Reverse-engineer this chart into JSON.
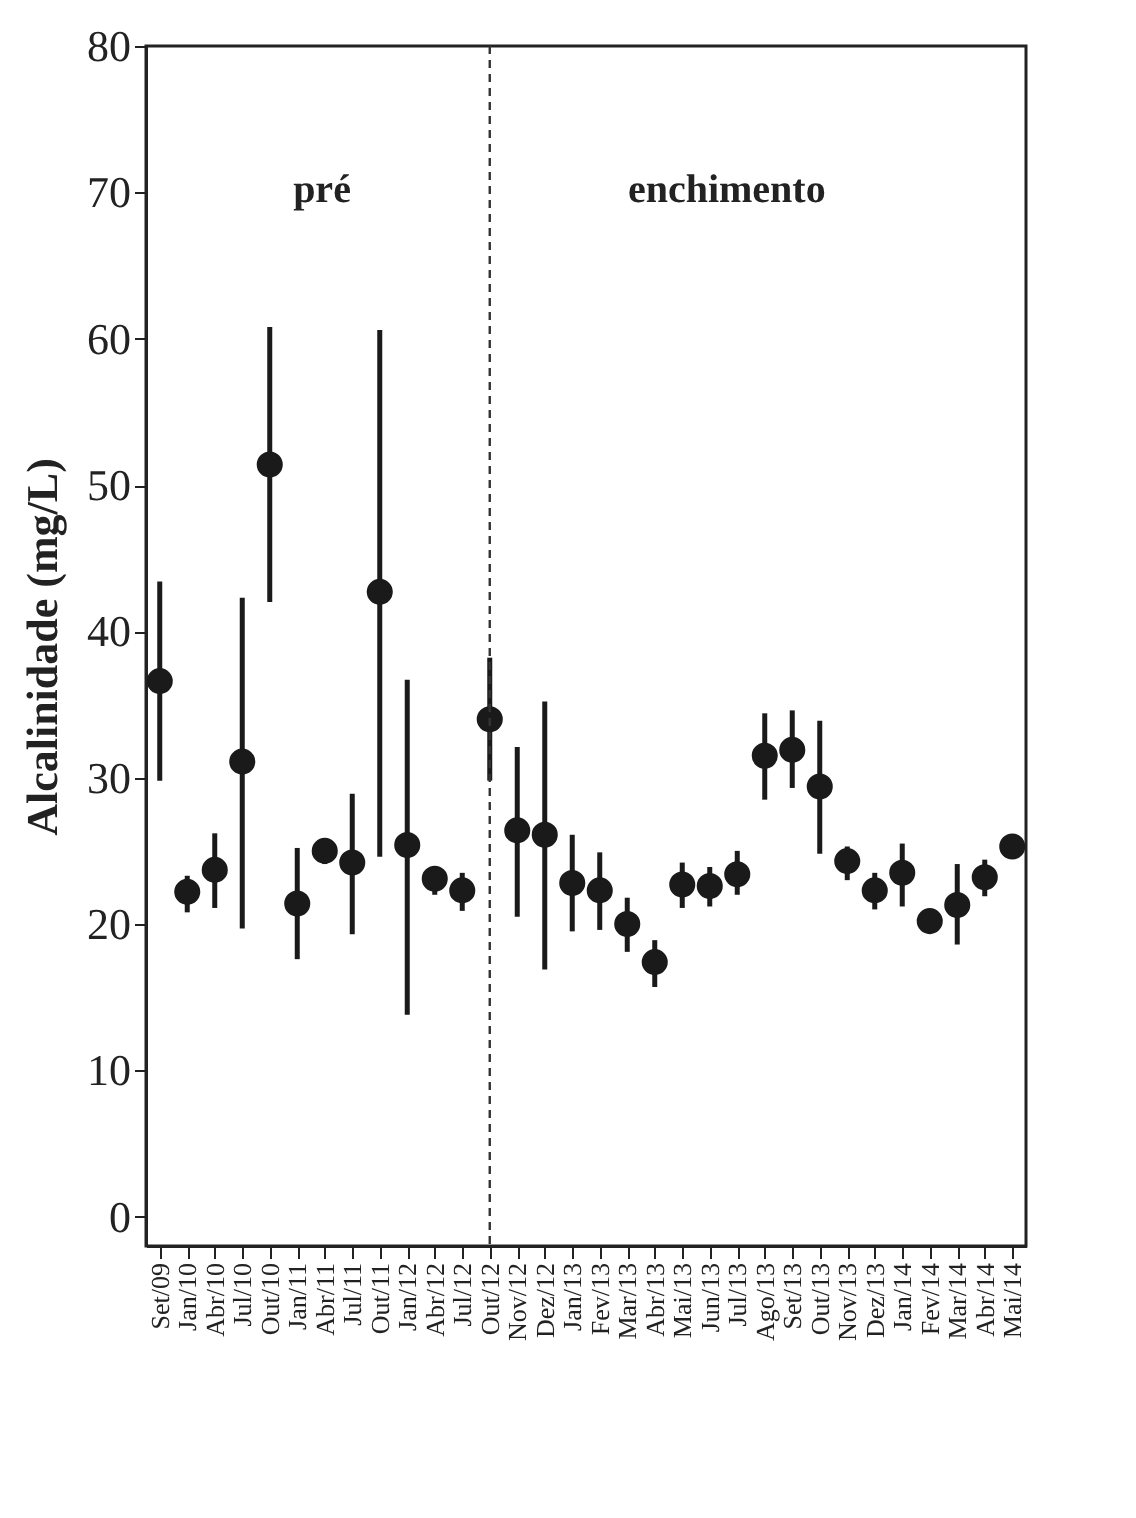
{
  "chart_data": {
    "type": "scatter",
    "ylabel": "Alcalinidade (mg/L)",
    "annotations": [
      "pré",
      "enchimento"
    ],
    "categories": [
      "Set/09",
      "Jan/10",
      "Abr/10",
      "Jul/10",
      "Out/10",
      "Jan/11",
      "Abr/11",
      "Jul/11",
      "Out/11",
      "Jan/12",
      "Abr/12",
      "Jul/12",
      "Out/12",
      "Nov/12",
      "Dez/12",
      "Jan/13",
      "Fev/13",
      "Mar/13",
      "Abr/13",
      "Mai/13",
      "Jun/13",
      "Jul/13",
      "Ago/13",
      "Set/13",
      "Out/13",
      "Nov/13",
      "Dez/13",
      "Jan/14",
      "Fev/14",
      "Mar/14",
      "Abr/14",
      "Mai/14"
    ],
    "series": [
      {
        "color": "#1a1a1a",
        "values": [
          36.6,
          22.2,
          23.7,
          31.1,
          51.4,
          21.4,
          25.0,
          24.2,
          42.7,
          25.4,
          23.1,
          22.3,
          34.0,
          26.4,
          26.1,
          22.8,
          22.3,
          20.0,
          17.4,
          22.7,
          22.6,
          23.4,
          31.5,
          31.9,
          29.4,
          24.3,
          22.3,
          23.5,
          20.2,
          21.3,
          23.2,
          25.3
        ],
        "errors": [
          [
            29.8,
            43.4
          ],
          [
            20.8,
            23.3
          ],
          [
            21.1,
            26.2
          ],
          [
            19.7,
            42.3
          ],
          [
            42.0,
            60.8
          ],
          [
            17.6,
            25.2
          ],
          [
            24.1,
            25.8
          ],
          [
            19.3,
            28.9
          ],
          [
            24.6,
            60.6
          ],
          [
            13.8,
            36.7
          ],
          [
            22.0,
            23.7
          ],
          [
            20.9,
            23.5
          ],
          [
            29.8,
            38.2
          ],
          [
            20.5,
            32.1
          ],
          [
            16.9,
            35.2
          ],
          [
            19.5,
            26.1
          ],
          [
            19.6,
            24.9
          ],
          [
            18.1,
            21.8
          ],
          [
            15.7,
            18.9
          ],
          [
            21.1,
            24.2
          ],
          [
            21.2,
            23.9
          ],
          [
            22.0,
            25.0
          ],
          [
            28.5,
            34.4
          ],
          [
            29.3,
            34.6
          ],
          [
            24.8,
            33.9
          ],
          [
            23.0,
            25.3
          ],
          [
            21.0,
            23.5
          ],
          [
            21.2,
            25.5
          ],
          [
            19.5,
            20.7
          ],
          [
            18.6,
            24.1
          ],
          [
            21.9,
            24.4
          ],
          [
            24.6,
            25.8
          ]
        ]
      }
    ],
    "ylim": [
      -2,
      80
    ],
    "yticks": [
      0,
      10,
      20,
      30,
      40,
      50,
      60,
      70,
      80
    ],
    "ref_lines": [
      {
        "axis": "x",
        "value": "Out/12",
        "line_style": "dashed",
        "color": "#333333"
      }
    ],
    "marker": "circle",
    "grid": false
  }
}
